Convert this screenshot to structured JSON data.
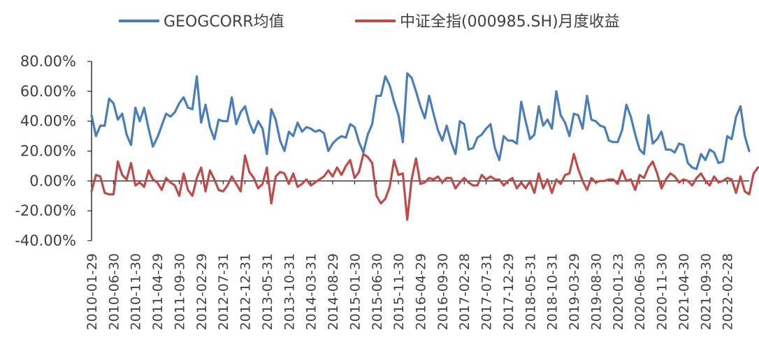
{
  "chart_data": {
    "type": "line",
    "title": "",
    "xlabel": "",
    "ylabel": "",
    "ylim": [
      -0.4,
      0.8
    ],
    "y_tick_values": [
      -0.4,
      -0.2,
      0.0,
      0.2,
      0.4,
      0.6,
      0.8
    ],
    "y_tick_labels": [
      "-40.00%",
      "-20.00%",
      "0.00%",
      "20.00%",
      "40.00%",
      "60.00%",
      "80.00%"
    ],
    "x_tick_labels": [
      "2010-01-29",
      "2010-06-30",
      "2010-11-30",
      "2011-04-29",
      "2011-09-30",
      "2012-02-29",
      "2012-07-31",
      "2012-12-31",
      "2013-05-31",
      "2013-10-31",
      "2014-03-31",
      "2014-08-29",
      "2015-01-30",
      "2015-06-30",
      "2015-11-30",
      "2016-04-29",
      "2016-09-30",
      "2017-02-28",
      "2017-07-31",
      "2017-12-29",
      "2018-05-31",
      "2018-10-31",
      "2019-03-29",
      "2019-08-30",
      "2020-01-23",
      "2020-06-30",
      "2020-11-30",
      "2021-04-30",
      "2021-09-30",
      "2022-02-28"
    ],
    "x_tick_every_n_months": 5,
    "x_start": "2010-01",
    "x_end": "2022-07",
    "legend_position": "top-center",
    "grid": false,
    "series": [
      {
        "name": "GEOGCORR均值",
        "color": "#4a7ebb",
        "values": [
          0.44,
          0.3,
          0.37,
          0.37,
          0.55,
          0.52,
          0.41,
          0.45,
          0.31,
          0.24,
          0.49,
          0.4,
          0.49,
          0.35,
          0.23,
          0.29,
          0.37,
          0.45,
          0.43,
          0.46,
          0.52,
          0.56,
          0.49,
          0.48,
          0.7,
          0.39,
          0.51,
          0.36,
          0.28,
          0.41,
          0.4,
          0.4,
          0.56,
          0.38,
          0.46,
          0.5,
          0.39,
          0.32,
          0.4,
          0.35,
          0.18,
          0.48,
          0.41,
          0.27,
          0.2,
          0.33,
          0.3,
          0.39,
          0.33,
          0.36,
          0.35,
          0.33,
          0.34,
          0.32,
          0.2,
          0.25,
          0.28,
          0.3,
          0.29,
          0.38,
          0.36,
          0.26,
          0.19,
          0.31,
          0.38,
          0.57,
          0.57,
          0.7,
          0.64,
          0.53,
          0.44,
          0.26,
          0.72,
          0.69,
          0.6,
          0.5,
          0.42,
          0.57,
          0.45,
          0.34,
          0.27,
          0.37,
          0.26,
          0.18,
          0.4,
          0.38,
          0.21,
          0.22,
          0.29,
          0.31,
          0.35,
          0.38,
          0.22,
          0.14,
          0.3,
          0.27,
          0.27,
          0.25,
          0.53,
          0.4,
          0.28,
          0.31,
          0.5,
          0.37,
          0.41,
          0.35,
          0.6,
          0.44,
          0.39,
          0.3,
          0.45,
          0.44,
          0.35,
          0.57,
          0.41,
          0.4,
          0.37,
          0.36,
          0.27,
          0.26,
          0.26,
          0.34,
          0.51,
          0.43,
          0.31,
          0.21,
          0.18,
          0.44,
          0.25,
          0.28,
          0.33,
          0.21,
          0.21,
          0.19,
          0.25,
          0.24,
          0.12,
          0.09,
          0.08,
          0.18,
          0.14,
          0.21,
          0.19,
          0.12,
          0.13,
          0.3,
          0.28,
          0.43,
          0.5,
          0.3,
          0.2
        ]
      },
      {
        "name": "中证全指(000985.SH)月度收益",
        "color": "#be4b48",
        "values": [
          -0.07,
          0.04,
          0.03,
          -0.08,
          -0.09,
          -0.09,
          0.13,
          0.04,
          0.01,
          0.12,
          -0.03,
          -0.01,
          -0.04,
          0.07,
          0.01,
          -0.01,
          -0.06,
          0.02,
          -0.01,
          -0.03,
          -0.1,
          0.05,
          -0.06,
          -0.1,
          0.02,
          0.09,
          -0.07,
          0.07,
          0.01,
          -0.06,
          -0.07,
          -0.03,
          0.03,
          -0.02,
          -0.07,
          0.17,
          0.06,
          0.02,
          -0.05,
          -0.02,
          0.09,
          -0.15,
          0.03,
          0.06,
          0.05,
          -0.02,
          0.05,
          -0.04,
          -0.02,
          0.01,
          -0.03,
          -0.01,
          0.01,
          0.03,
          0.07,
          0.03,
          0.09,
          0.04,
          0.1,
          0.14,
          0.02,
          0.06,
          0.18,
          0.16,
          0.12,
          -0.1,
          -0.15,
          -0.12,
          -0.04,
          0.14,
          0.04,
          0.05,
          -0.26,
          0.01,
          0.15,
          -0.02,
          -0.01,
          0.02,
          0.01,
          0.03,
          -0.01,
          0.02,
          0.02,
          -0.05,
          -0.01,
          0.02,
          -0.01,
          -0.03,
          -0.03,
          0.04,
          0.01,
          0.03,
          0.01,
          0.01,
          -0.03,
          0.0,
          0.02,
          -0.05,
          -0.01,
          -0.05,
          0.0,
          -0.08,
          0.05,
          -0.05,
          0.01,
          -0.08,
          0.01,
          -0.02,
          0.04,
          0.05,
          0.18,
          0.08,
          0.0,
          -0.06,
          0.02,
          -0.01,
          0.0,
          0.0,
          0.01,
          0.01,
          -0.02,
          0.07,
          0.0,
          0.01,
          -0.06,
          0.04,
          0.02,
          0.09,
          0.13,
          0.05,
          -0.05,
          0.01,
          0.05,
          0.03,
          -0.01,
          0.01,
          0.0,
          -0.03,
          0.02,
          0.05,
          0.0,
          -0.03,
          0.03,
          -0.01,
          0.0,
          0.02,
          0.01,
          -0.08,
          0.03,
          -0.07,
          -0.09,
          0.05,
          0.09
        ]
      }
    ]
  }
}
